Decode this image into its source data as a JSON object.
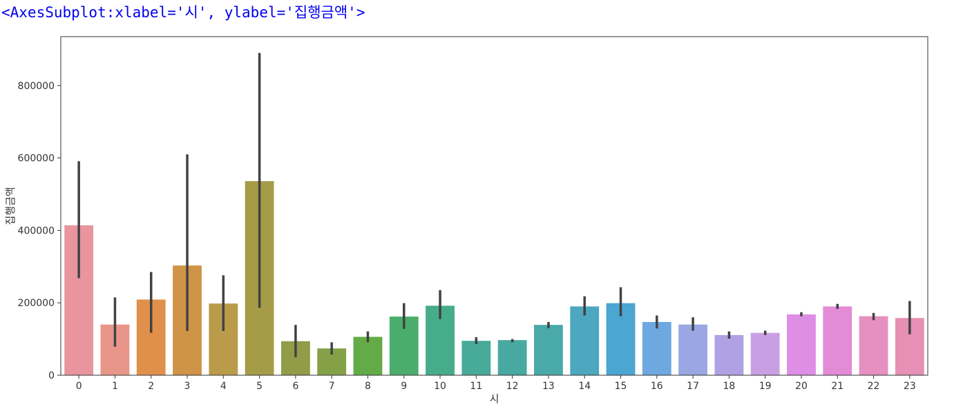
{
  "output_repr": "<AxesSubplot:xlabel='시', ylabel='집행금액'>",
  "chart_data": {
    "type": "bar",
    "title": "",
    "xlabel": "시",
    "ylabel": "집행금액",
    "ylim": [
      0,
      935000
    ],
    "yticks": [
      0,
      200000,
      400000,
      600000,
      800000
    ],
    "grid": false,
    "legend": "none",
    "categories": [
      "0",
      "1",
      "2",
      "3",
      "4",
      "5",
      "6",
      "7",
      "8",
      "9",
      "10",
      "11",
      "12",
      "13",
      "14",
      "15",
      "16",
      "17",
      "18",
      "19",
      "20",
      "21",
      "22",
      "23"
    ],
    "values": [
      414000,
      140000,
      209000,
      303000,
      198000,
      536000,
      94000,
      74000,
      106000,
      162000,
      192000,
      95000,
      97000,
      139000,
      190000,
      199000,
      147000,
      140000,
      111000,
      117000,
      168000,
      190000,
      163000,
      158000
    ],
    "ci_low": [
      268000,
      79000,
      117000,
      122000,
      122000,
      186000,
      50000,
      57000,
      91000,
      128000,
      155000,
      86000,
      91000,
      130000,
      165000,
      163000,
      129000,
      123000,
      101000,
      111000,
      163000,
      183000,
      152000,
      113000
    ],
    "ci_high": [
      591000,
      215000,
      285000,
      610000,
      276000,
      890000,
      139000,
      91000,
      121000,
      199000,
      235000,
      105000,
      100000,
      147000,
      218000,
      243000,
      165000,
      160000,
      121000,
      123000,
      174000,
      197000,
      172000,
      205000
    ],
    "colors": [
      "#e8959e",
      "#e8968a",
      "#e0904b",
      "#cf9447",
      "#ba9b4a",
      "#a69c47",
      "#929b48",
      "#85a148",
      "#63ab47",
      "#4aad6c",
      "#47ac89",
      "#48aa99",
      "#48a9a1",
      "#4aa9a9",
      "#4ca7bf",
      "#4ba6d2",
      "#6ea8e0",
      "#9aa7e4",
      "#b0a0e4",
      "#c99fe4",
      "#de8ee4",
      "#e48bd6",
      "#e590c1",
      "#e590b4"
    ],
    "error_color": "#424242"
  }
}
